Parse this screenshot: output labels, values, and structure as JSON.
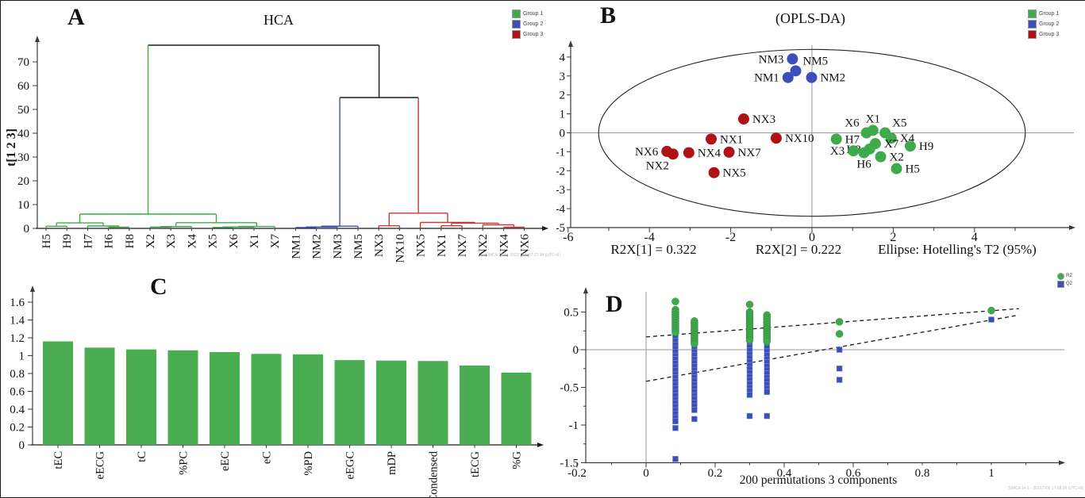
{
  "colors": {
    "group1": "#3faa4b",
    "group2": "#3d4eb8",
    "group3": "#b01116",
    "red_line": "#c23b3b",
    "black_line": "#1a1a1a",
    "axis": "#3a3a3a",
    "gridline": "#9a9a9a",
    "dashed": "#1a1a1a",
    "bar_green": "#4aad52"
  },
  "chart_data": [
    {
      "type": "dendrogram",
      "panel_label": "A",
      "title": "HCA",
      "ylabel": "t[1 2 3]",
      "yticks": [
        0,
        10,
        20,
        30,
        40,
        50,
        60,
        70
      ],
      "legend": [
        {
          "label": "Group 1",
          "color": "#3faa4b"
        },
        {
          "label": "Group 2",
          "color": "#3d4eb8"
        },
        {
          "label": "Group 3",
          "color": "#b01116"
        }
      ],
      "watermark": "SIMCA 14.1 - 2022/7/05 17:22:34 (UTC+8)",
      "leaves": [
        "H5",
        "H9",
        "H7",
        "H6",
        "H8",
        "X2",
        "X3",
        "X4",
        "X5",
        "X6",
        "X1",
        "X7",
        "NM1",
        "NM2",
        "NM3",
        "NM5",
        "NX3",
        "NX10",
        "NX5",
        "NX1",
        "NX7",
        "NX2",
        "NX4",
        "NX6"
      ],
      "tree": {
        "c": "black",
        "h": 77,
        "children": [
          {
            "c": "green",
            "h": 6.0,
            "children": [
              {
                "c": "green",
                "h": 2.3,
                "children": [
                  {
                    "c": "green",
                    "h": 0.9,
                    "children": [
                      {
                        "leaf": "H5"
                      },
                      {
                        "leaf": "H9"
                      }
                    ]
                  },
                  {
                    "c": "green",
                    "h": 1.0,
                    "children": [
                      {
                        "leaf": "H7"
                      },
                      {
                        "c": "green",
                        "h": 0.5,
                        "children": [
                          {
                            "leaf": "H6"
                          },
                          {
                            "leaf": "H8"
                          }
                        ]
                      }
                    ]
                  }
                ]
              },
              {
                "c": "green",
                "h": 2.4,
                "children": [
                  {
                    "c": "green",
                    "h": 0.75,
                    "children": [
                      {
                        "c": "green",
                        "h": 0.55,
                        "children": [
                          {
                            "leaf": "X2"
                          },
                          {
                            "leaf": "X3"
                          }
                        ]
                      },
                      {
                        "leaf": "X4"
                      }
                    ]
                  },
                  {
                    "c": "green",
                    "h": 0.8,
                    "children": [
                      {
                        "c": "green",
                        "h": 0.6,
                        "children": [
                          {
                            "c": "green",
                            "h": 0.4,
                            "children": [
                              {
                                "leaf": "X5"
                              },
                              {
                                "leaf": "X6"
                              }
                            ]
                          },
                          {
                            "leaf": "X1"
                          }
                        ]
                      },
                      {
                        "leaf": "X7"
                      }
                    ]
                  }
                ]
              }
            ]
          },
          {
            "c": "black",
            "h": 55,
            "children": [
              {
                "c": "blue",
                "h": 0.95,
                "children": [
                  {
                    "c": "blue",
                    "h": 0.6,
                    "children": [
                      {
                        "c": "blue",
                        "h": 0.35,
                        "children": [
                          {
                            "leaf": "NM1"
                          },
                          {
                            "leaf": "NM2"
                          }
                        ]
                      },
                      {
                        "leaf": "NM3"
                      }
                    ]
                  },
                  {
                    "leaf": "NM5"
                  }
                ]
              },
              {
                "c": "red",
                "h": 6.4,
                "children": [
                  {
                    "c": "red",
                    "h": 1.1,
                    "children": [
                      {
                        "leaf": "NX3"
                      },
                      {
                        "leaf": "NX10"
                      }
                    ]
                  },
                  {
                    "c": "red",
                    "h": 2.5,
                    "children": [
                      {
                        "leaf": "NX5"
                      },
                      {
                        "c": "red",
                        "h": 2.2,
                        "children": [
                          {
                            "c": "red",
                            "h": 1.1,
                            "children": [
                              {
                                "leaf": "NX1"
                              },
                              {
                                "leaf": "NX7"
                              }
                            ]
                          },
                          {
                            "c": "red",
                            "h": 1.5,
                            "children": [
                              {
                                "leaf": "NX2"
                              },
                              {
                                "c": "red",
                                "h": 0.5,
                                "children": [
                                  {
                                    "leaf": "NX4"
                                  },
                                  {
                                    "leaf": "NX6"
                                  }
                                ]
                              }
                            ]
                          }
                        ]
                      }
                    ]
                  }
                ]
              }
            ]
          }
        ]
      }
    },
    {
      "type": "scatter",
      "panel_label": "B",
      "title": "(OPLS-DA)",
      "xticks": [
        -6,
        -4,
        -2,
        0,
        2,
        4
      ],
      "yticks": [
        4,
        3,
        2,
        1,
        0,
        -1,
        -2,
        -3,
        -4,
        -5
      ],
      "ellipse": {
        "cx": 0,
        "cy": 0,
        "rx": 5.25,
        "ry": 4.4
      },
      "annotations": [
        "R2X[1] = 0.322",
        "R2X[2] = 0.222",
        "Ellipse: Hotelling's T2 (95%)"
      ],
      "legend": [
        {
          "label": "Group 1",
          "color": "#3faa4b"
        },
        {
          "label": "Group 2",
          "color": "#3d4eb8"
        },
        {
          "label": "Group 3",
          "color": "#b01116"
        }
      ],
      "points": [
        {
          "label": "X1",
          "x": 1.5,
          "y": 0.13,
          "group": "group1",
          "side": "top"
        },
        {
          "label": "X6",
          "x": 1.34,
          "y": 0.0,
          "group": "group1",
          "side": "topleft"
        },
        {
          "label": "X5",
          "x": 1.8,
          "y": 0.0,
          "group": "group1",
          "side": "topright"
        },
        {
          "label": "X4",
          "x": 1.95,
          "y": -0.28,
          "group": "group1",
          "side": "right"
        },
        {
          "label": "H7",
          "x": 0.6,
          "y": -0.33,
          "group": "group1",
          "side": "right"
        },
        {
          "label": "H8",
          "x": 1.42,
          "y": -0.85,
          "group": "group1",
          "side": "left"
        },
        {
          "label": "X7",
          "x": 1.56,
          "y": -0.57,
          "group": "group1",
          "side": "right"
        },
        {
          "label": "H9",
          "x": 2.42,
          "y": -0.7,
          "group": "group1",
          "side": "right"
        },
        {
          "label": "X3",
          "x": 1.02,
          "y": -0.95,
          "group": "group1",
          "side": "left"
        },
        {
          "label": "H6",
          "x": 1.28,
          "y": -1.05,
          "group": "group1",
          "side": "bottom"
        },
        {
          "label": "X2",
          "x": 1.69,
          "y": -1.26,
          "group": "group1",
          "side": "right"
        },
        {
          "label": "H5",
          "x": 2.08,
          "y": -1.89,
          "group": "group1",
          "side": "right"
        },
        {
          "label": "NM3",
          "x": -0.48,
          "y": 3.9,
          "group": "group2",
          "side": "left"
        },
        {
          "label": "NM5",
          "x": -0.4,
          "y": 3.27,
          "group": "group2",
          "side": "topright"
        },
        {
          "label": "NM1",
          "x": -0.59,
          "y": 2.92,
          "group": "group2",
          "side": "left"
        },
        {
          "label": "NM2",
          "x": -0.01,
          "y": 2.92,
          "group": "group2",
          "side": "right"
        },
        {
          "label": "NX3",
          "x": -1.68,
          "y": 0.73,
          "group": "group3",
          "side": "right"
        },
        {
          "label": "NX10",
          "x": -0.88,
          "y": -0.28,
          "group": "group3",
          "side": "right"
        },
        {
          "label": "NX1",
          "x": -2.48,
          "y": -0.33,
          "group": "group3",
          "side": "right"
        },
        {
          "label": "NX7",
          "x": -2.04,
          "y": -1.02,
          "group": "group3",
          "side": "right"
        },
        {
          "label": "NX4",
          "x": -3.03,
          "y": -1.05,
          "group": "group3",
          "side": "right"
        },
        {
          "label": "NX6",
          "x": -3.57,
          "y": -0.98,
          "group": "group3",
          "side": "left"
        },
        {
          "label": "NX2",
          "x": -3.42,
          "y": -1.12,
          "group": "group3",
          "side": "bottomleft"
        },
        {
          "label": "NX5",
          "x": -2.41,
          "y": -2.1,
          "group": "group3",
          "side": "right"
        }
      ]
    },
    {
      "type": "bar",
      "panel_label": "C",
      "categories": [
        "tEC",
        "eECG",
        "tC",
        "%PC",
        "eEC",
        "eC",
        "%PD",
        "eEGC",
        "mDP",
        "Condensed",
        "tECG",
        "%G"
      ],
      "values": [
        1.16,
        1.09,
        1.07,
        1.06,
        1.04,
        1.02,
        1.015,
        0.95,
        0.945,
        0.94,
        0.89,
        0.81
      ],
      "yticks": [
        [
          0,
          "0"
        ],
        [
          0.2,
          "0.2"
        ],
        [
          0.4,
          "0.4"
        ],
        [
          0.6,
          "0.6"
        ],
        [
          0.8,
          "0.8"
        ],
        [
          1,
          "1"
        ],
        [
          1.2,
          "1.2"
        ],
        [
          1.4,
          "1.4"
        ],
        [
          1.6,
          "1.6"
        ]
      ],
      "bar_color": "#4aad52"
    },
    {
      "type": "permutation-scatter",
      "panel_label": "D",
      "xlabel": "200 permutations 3 components",
      "xticks": [
        [
          -0.2,
          "-0.2"
        ],
        [
          0,
          "0"
        ],
        [
          0.2,
          "0.2"
        ],
        [
          0.4,
          "0.4"
        ],
        [
          0.6,
          "0.6"
        ],
        [
          0.8,
          "0.8"
        ],
        [
          1,
          "1"
        ]
      ],
      "yticks": [
        [
          0.5,
          "0.5"
        ],
        [
          0,
          "0"
        ],
        [
          -0.5,
          "-0.5"
        ],
        [
          -1,
          "-1"
        ],
        [
          -1.5,
          "-1.5"
        ]
      ],
      "legend": [
        {
          "label": "R2",
          "color": "#3faa4b",
          "shape": "circle"
        },
        {
          "label": "Q2",
          "color": "#3d4eb8",
          "shape": "square"
        }
      ],
      "watermark": "SIMCA 14.1 - 2022/7/05 17:08:06 (UTC+8)",
      "r2_line": {
        "x1": 0,
        "y1": 0.17,
        "x2": 1.08,
        "y2": 0.545
      },
      "q2_line": {
        "x1": 0,
        "y1": -0.42,
        "x2": 1.08,
        "y2": 0.46
      },
      "r2_columns": [
        {
          "x": 0.085,
          "ymax": 0.53,
          "ymin": 0.23,
          "n": 11,
          "extra": [
            0.64
          ]
        },
        {
          "x": 0.14,
          "ymax": 0.38,
          "ymin": 0.08,
          "n": 11
        },
        {
          "x": 0.3,
          "ymax": 0.5,
          "ymin": 0.13,
          "n": 13,
          "extra": [
            0.6
          ]
        },
        {
          "x": 0.35,
          "ymax": 0.46,
          "ymin": 0.11,
          "n": 12
        },
        {
          "x": 0.56,
          "ys": [
            0.37,
            0.21
          ]
        },
        {
          "x": 1.0,
          "ys": [
            0.52
          ]
        }
      ],
      "q2_columns": [
        {
          "x": 0.085,
          "ymax": 0.45,
          "ymin": -0.95,
          "n": 30,
          "extra": [
            -1.04,
            -1.45
          ]
        },
        {
          "x": 0.14,
          "ymax": 0.02,
          "ymin": -0.8,
          "n": 18,
          "extra": [
            -0.92
          ]
        },
        {
          "x": 0.3,
          "ymax": 0.38,
          "ymin": -0.6,
          "n": 21,
          "extra": [
            -0.88
          ]
        },
        {
          "x": 0.35,
          "ymax": 0.12,
          "ymin": -0.56,
          "n": 15,
          "extra": [
            -0.88
          ]
        },
        {
          "x": 0.56,
          "ys": [
            0.0,
            -0.25,
            -0.4
          ]
        },
        {
          "x": 1.0,
          "ys": [
            0.4
          ]
        }
      ]
    }
  ]
}
